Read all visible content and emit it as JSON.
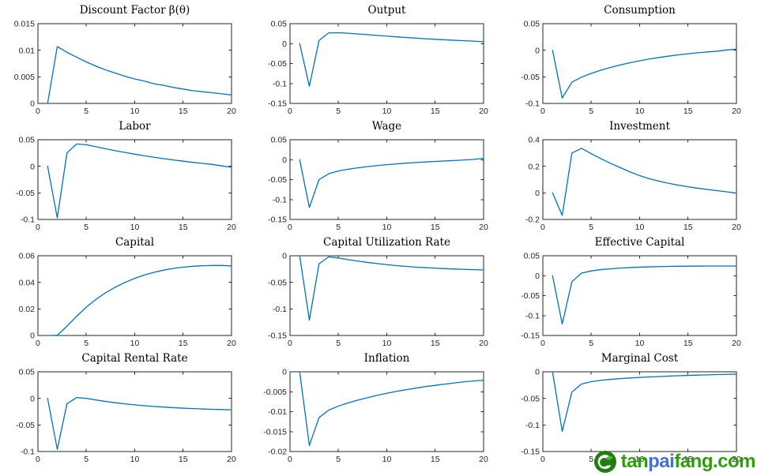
{
  "page": {
    "background": "#ffffff"
  },
  "chart_style": {
    "line_color": "#0072bd",
    "axis_color": "#262626",
    "tick_label_color": "#262626",
    "title_color": "#000000"
  },
  "watermark": {
    "logo_icon": "tanpaifang-leaf-circle",
    "logo_circle_color": "#1f7d12",
    "logo_glyph_color": "#ffffff",
    "segments": [
      {
        "text": "tan",
        "color": "#2f9e0e"
      },
      {
        "text": "pai",
        "color": "#4a6fd4"
      },
      {
        "text": "fang.com",
        "color": "#2f9e0e"
      }
    ]
  },
  "chart_data": [
    {
      "type": "line",
      "slug": "discount-factor",
      "title": "Discount Factor β(θ)",
      "xlabel": "",
      "ylabel": "",
      "grid": false,
      "legend": null,
      "xlim": [
        0,
        20
      ],
      "ylim": [
        0,
        0.015
      ],
      "xticks": [
        0,
        5,
        10,
        15,
        20
      ],
      "yticks": [
        0,
        0.005,
        0.01,
        0.015
      ],
      "x": [
        1,
        2,
        3,
        4,
        5,
        6,
        7,
        8,
        9,
        10,
        11,
        12,
        13,
        14,
        15,
        16,
        17,
        18,
        19,
        20
      ],
      "values": [
        0,
        0.0107,
        0.0096,
        0.0087,
        0.0078,
        0.007,
        0.0063,
        0.0057,
        0.0051,
        0.0046,
        0.0042,
        0.0037,
        0.0034,
        0.003,
        0.0027,
        0.0024,
        0.0022,
        0.002,
        0.0018,
        0.0016
      ]
    },
    {
      "type": "line",
      "slug": "output",
      "title": "Output",
      "xlabel": "",
      "ylabel": "",
      "grid": false,
      "legend": null,
      "xlim": [
        0,
        20
      ],
      "ylim": [
        -0.15,
        0.05
      ],
      "xticks": [
        0,
        5,
        10,
        15,
        20
      ],
      "yticks": [
        -0.15,
        -0.1,
        -0.05,
        0,
        0.05
      ],
      "x": [
        1,
        2,
        3,
        4,
        5,
        6,
        7,
        8,
        9,
        10,
        11,
        12,
        13,
        14,
        15,
        16,
        17,
        18,
        19,
        20
      ],
      "values": [
        0,
        -0.107,
        0.008,
        0.027,
        0.0272,
        0.026,
        0.0243,
        0.0225,
        0.0206,
        0.0188,
        0.017,
        0.0153,
        0.0137,
        0.0122,
        0.0108,
        0.0095,
        0.0083,
        0.0072,
        0.0062,
        0.0047
      ]
    },
    {
      "type": "line",
      "slug": "consumption",
      "title": "Consumption",
      "xlabel": "",
      "ylabel": "",
      "grid": false,
      "legend": null,
      "xlim": [
        0,
        20
      ],
      "ylim": [
        -0.1,
        0.05
      ],
      "xticks": [
        0,
        5,
        10,
        15,
        20
      ],
      "yticks": [
        -0.1,
        -0.05,
        0,
        0.05
      ],
      "x": [
        1,
        2,
        3,
        4,
        5,
        6,
        7,
        8,
        9,
        10,
        11,
        12,
        13,
        14,
        15,
        16,
        17,
        18,
        19,
        20
      ],
      "values": [
        0,
        -0.09,
        -0.06,
        -0.0505,
        -0.0435,
        -0.0375,
        -0.0322,
        -0.0276,
        -0.0235,
        -0.0198,
        -0.0165,
        -0.0136,
        -0.011,
        -0.0087,
        -0.0066,
        -0.0048,
        -0.0032,
        -0.0017,
        0.0005,
        0.002
      ]
    },
    {
      "type": "line",
      "slug": "labor",
      "title": "Labor",
      "xlabel": "",
      "ylabel": "",
      "grid": false,
      "legend": null,
      "xlim": [
        0,
        20
      ],
      "ylim": [
        -0.1,
        0.05
      ],
      "xticks": [
        0,
        5,
        10,
        15,
        20
      ],
      "yticks": [
        -0.1,
        -0.05,
        0,
        0.05
      ],
      "x": [
        1,
        2,
        3,
        4,
        5,
        6,
        7,
        8,
        9,
        10,
        11,
        12,
        13,
        14,
        15,
        16,
        17,
        18,
        19,
        20
      ],
      "values": [
        0,
        -0.097,
        0.025,
        0.042,
        0.0405,
        0.0368,
        0.033,
        0.0294,
        0.026,
        0.0228,
        0.0198,
        0.017,
        0.0144,
        0.0119,
        0.0096,
        0.0074,
        0.0054,
        0.0035,
        0.0007,
        -0.0018
      ]
    },
    {
      "type": "line",
      "slug": "wage",
      "title": "Wage",
      "xlabel": "",
      "ylabel": "",
      "grid": false,
      "legend": null,
      "xlim": [
        0,
        20
      ],
      "ylim": [
        -0.15,
        0.05
      ],
      "xticks": [
        0,
        5,
        10,
        15,
        20
      ],
      "yticks": [
        -0.15,
        -0.1,
        -0.05,
        0,
        0.05
      ],
      "x": [
        1,
        2,
        3,
        4,
        5,
        6,
        7,
        8,
        9,
        10,
        11,
        12,
        13,
        14,
        15,
        16,
        17,
        18,
        19,
        20
      ],
      "values": [
        0,
        -0.12,
        -0.05,
        -0.0355,
        -0.0285,
        -0.024,
        -0.0205,
        -0.0175,
        -0.0149,
        -0.0126,
        -0.0106,
        -0.0088,
        -0.0072,
        -0.0058,
        -0.0045,
        -0.0033,
        -0.0022,
        -0.0008,
        0.0008,
        0.0035
      ]
    },
    {
      "type": "line",
      "slug": "investment",
      "title": "Investment",
      "xlabel": "",
      "ylabel": "",
      "grid": false,
      "legend": null,
      "xlim": [
        0,
        20
      ],
      "ylim": [
        -0.2,
        0.4
      ],
      "xticks": [
        0,
        5,
        10,
        15,
        20
      ],
      "yticks": [
        -0.2,
        0,
        0.2,
        0.4
      ],
      "x": [
        1,
        2,
        3,
        4,
        5,
        6,
        7,
        8,
        9,
        10,
        11,
        12,
        13,
        14,
        15,
        16,
        17,
        18,
        19,
        20
      ],
      "values": [
        0,
        -0.17,
        0.3,
        0.335,
        0.295,
        0.257,
        0.222,
        0.19,
        0.158,
        0.13,
        0.107,
        0.088,
        0.072,
        0.058,
        0.046,
        0.035,
        0.026,
        0.017,
        0.008,
        -0.002
      ]
    },
    {
      "type": "line",
      "slug": "capital",
      "title": "Capital",
      "xlabel": "",
      "ylabel": "",
      "grid": false,
      "legend": null,
      "xlim": [
        0,
        20
      ],
      "ylim": [
        0,
        0.06
      ],
      "xticks": [
        0,
        5,
        10,
        15,
        20
      ],
      "yticks": [
        0,
        0.02,
        0.04,
        0.06
      ],
      "x": [
        1,
        2,
        3,
        4,
        5,
        6,
        7,
        8,
        9,
        10,
        11,
        12,
        13,
        14,
        15,
        16,
        17,
        18,
        19,
        20
      ],
      "values": [
        0,
        0.0002,
        0.007,
        0.0145,
        0.0213,
        0.0272,
        0.0322,
        0.0364,
        0.04,
        0.043,
        0.0455,
        0.0475,
        0.0492,
        0.0505,
        0.0514,
        0.0521,
        0.0525,
        0.0527,
        0.0527,
        0.0524
      ]
    },
    {
      "type": "line",
      "slug": "capital-utilization-rate",
      "title": "Capital Utilization Rate",
      "xlabel": "",
      "ylabel": "",
      "grid": false,
      "legend": null,
      "xlim": [
        0,
        20
      ],
      "ylim": [
        -0.15,
        0
      ],
      "xticks": [
        0,
        5,
        10,
        15,
        20
      ],
      "yticks": [
        -0.15,
        -0.1,
        -0.05,
        0
      ],
      "x": [
        1,
        2,
        3,
        4,
        5,
        6,
        7,
        8,
        9,
        10,
        11,
        12,
        13,
        14,
        15,
        16,
        17,
        18,
        19,
        20
      ],
      "values": [
        0,
        -0.121,
        -0.015,
        -0.002,
        -0.0042,
        -0.0072,
        -0.01,
        -0.0125,
        -0.0147,
        -0.0167,
        -0.0185,
        -0.02,
        -0.0213,
        -0.0224,
        -0.0234,
        -0.0242,
        -0.025,
        -0.0256,
        -0.0262,
        -0.0267
      ]
    },
    {
      "type": "line",
      "slug": "effective-capital",
      "title": "Effective Capital",
      "xlabel": "",
      "ylabel": "",
      "grid": false,
      "legend": null,
      "xlim": [
        0,
        20
      ],
      "ylim": [
        -0.15,
        0.05
      ],
      "xticks": [
        0,
        5,
        10,
        15,
        20
      ],
      "yticks": [
        -0.15,
        -0.1,
        -0.05,
        0,
        0.05
      ],
      "x": [
        1,
        2,
        3,
        4,
        5,
        6,
        7,
        8,
        9,
        10,
        11,
        12,
        13,
        14,
        15,
        16,
        17,
        18,
        19,
        20
      ],
      "values": [
        0,
        -0.121,
        -0.015,
        0.0065,
        0.012,
        0.0152,
        0.0174,
        0.0191,
        0.0204,
        0.0214,
        0.0222,
        0.0228,
        0.0233,
        0.0236,
        0.0239,
        0.0241,
        0.0242,
        0.0243,
        0.0243,
        0.0242
      ]
    },
    {
      "type": "line",
      "slug": "capital-rental-rate",
      "title": "Capital Rental Rate",
      "xlabel": "",
      "ylabel": "",
      "grid": false,
      "legend": null,
      "xlim": [
        0,
        20
      ],
      "ylim": [
        -0.1,
        0.05
      ],
      "xticks": [
        0,
        5,
        10,
        15,
        20
      ],
      "yticks": [
        -0.1,
        -0.05,
        0,
        0.05
      ],
      "x": [
        1,
        2,
        3,
        4,
        5,
        6,
        7,
        8,
        9,
        10,
        11,
        12,
        13,
        14,
        15,
        16,
        17,
        18,
        19,
        20
      ],
      "values": [
        0,
        -0.096,
        -0.01,
        0.0015,
        0,
        -0.003,
        -0.0058,
        -0.0082,
        -0.0103,
        -0.0122,
        -0.0138,
        -0.0152,
        -0.0164,
        -0.0175,
        -0.0184,
        -0.0192,
        -0.0199,
        -0.0205,
        -0.021,
        -0.0215
      ]
    },
    {
      "type": "line",
      "slug": "inflation",
      "title": "Inflation",
      "xlabel": "",
      "ylabel": "",
      "grid": false,
      "legend": null,
      "xlim": [
        0,
        20
      ],
      "ylim": [
        -0.02,
        0
      ],
      "xticks": [
        0,
        5,
        10,
        15,
        20
      ],
      "yticks": [
        -0.02,
        -0.015,
        -0.01,
        -0.005,
        0
      ],
      "x": [
        1,
        2,
        3,
        4,
        5,
        6,
        7,
        8,
        9,
        10,
        11,
        12,
        13,
        14,
        15,
        16,
        17,
        18,
        19,
        20
      ],
      "values": [
        0,
        -0.0185,
        -0.0115,
        -0.0096,
        -0.0086,
        -0.0078,
        -0.0071,
        -0.0065,
        -0.0059,
        -0.0054,
        -0.0049,
        -0.0045,
        -0.0041,
        -0.0037,
        -0.0034,
        -0.0031,
        -0.0028,
        -0.0025,
        -0.0023,
        -0.0021
      ]
    },
    {
      "type": "line",
      "slug": "marginal-cost",
      "title": "Marginal Cost",
      "xlabel": "",
      "ylabel": "",
      "grid": false,
      "legend": null,
      "xlim": [
        0,
        20
      ],
      "ylim": [
        -0.15,
        0
      ],
      "xticks": [
        0,
        5,
        10,
        15,
        20
      ],
      "yticks": [
        -0.15,
        -0.1,
        -0.05,
        0
      ],
      "x": [
        1,
        2,
        3,
        4,
        5,
        6,
        7,
        8,
        9,
        10,
        11,
        12,
        13,
        14,
        15,
        16,
        17,
        18,
        19,
        20
      ],
      "values": [
        0,
        -0.112,
        -0.038,
        -0.023,
        -0.0185,
        -0.016,
        -0.0142,
        -0.0128,
        -0.0116,
        -0.0106,
        -0.0097,
        -0.0089,
        -0.0081,
        -0.0074,
        -0.0068,
        -0.0062,
        -0.0057,
        -0.0052,
        -0.0048,
        -0.0044
      ]
    }
  ]
}
